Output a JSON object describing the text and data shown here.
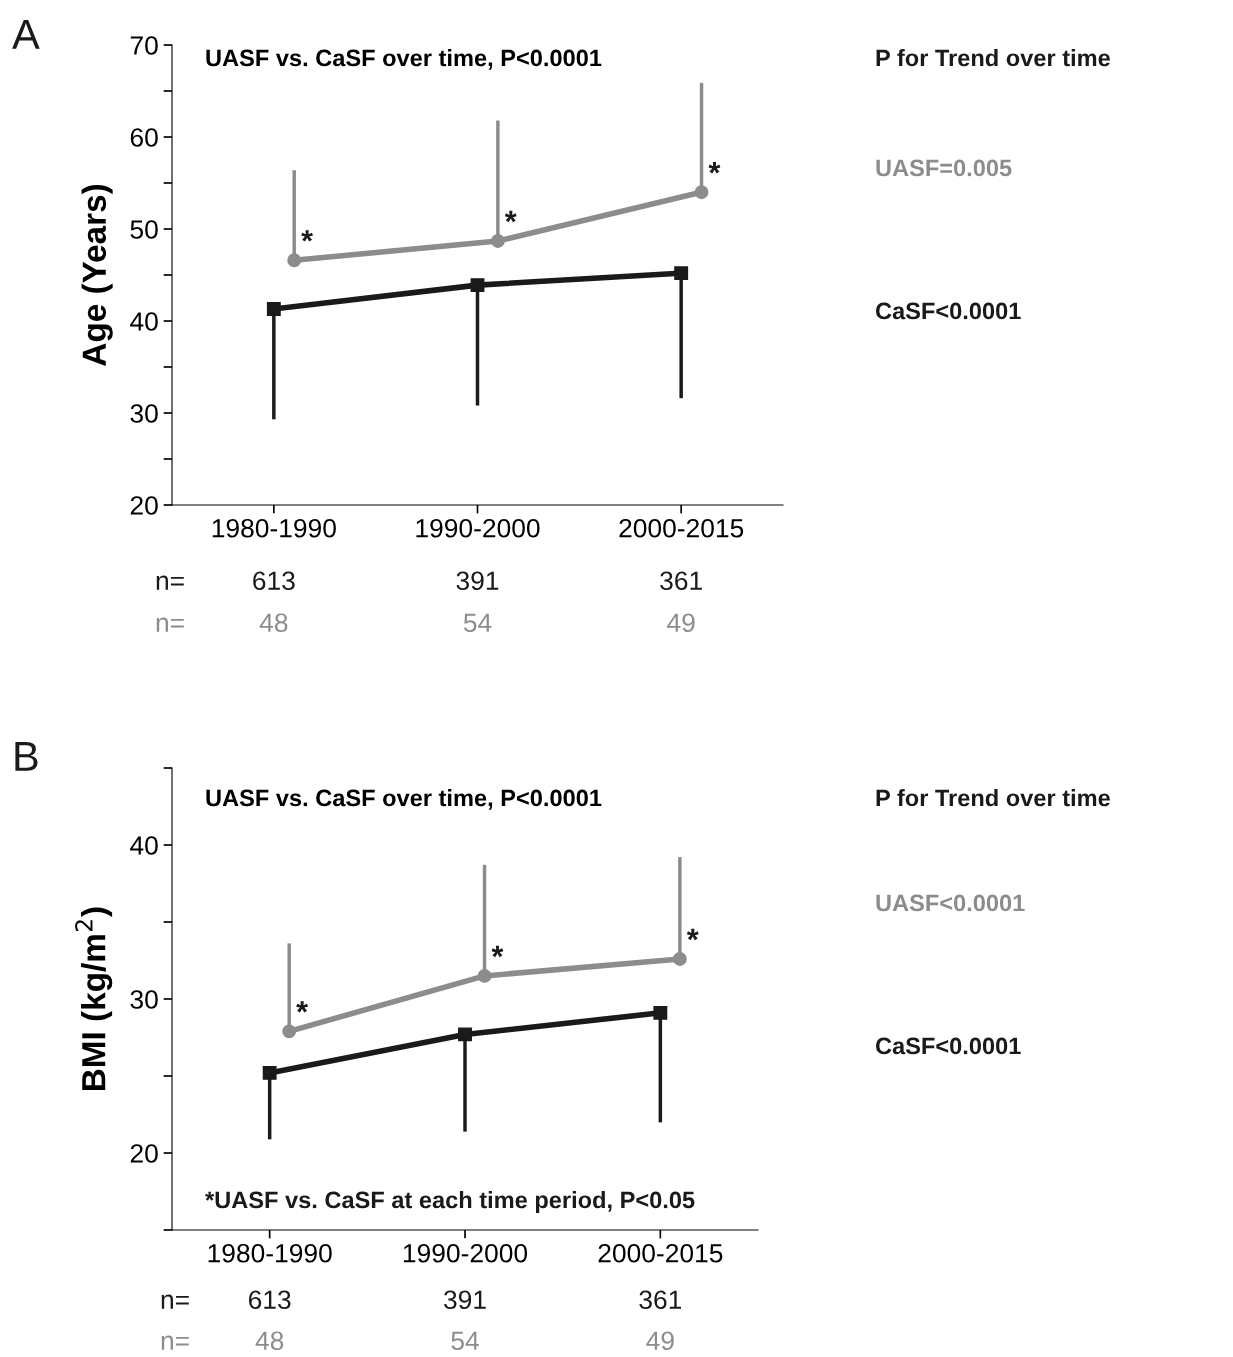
{
  "chart_data": [
    {
      "type": "line",
      "title": "UASF vs. CaSF over time, P<0.0001",
      "ylabel": "Age (Years)",
      "categories": [
        "1980-1990",
        "1990-2000",
        "2000-2015"
      ],
      "series": [
        {
          "color": "#8c8c8c",
          "values": [
            46.6,
            48.7,
            54.0
          ],
          "errors": [
            [
              46.6,
              56.2
            ],
            [
              48.7,
              61.6
            ],
            [
              54.0,
              65.7
            ]
          ],
          "marker": "circle"
        },
        {
          "color": "#1a1a1a",
          "values": [
            41.3,
            43.9,
            45.2
          ],
          "errors": [
            [
              29.5,
              41.3
            ],
            [
              31.0,
              43.9
            ],
            [
              31.8,
              45.2
            ]
          ],
          "marker": "square"
        }
      ],
      "ylim": [
        20,
        70
      ],
      "yticks": [
        20,
        {
          "value": 25,
          "label": null
        },
        30,
        {
          "value": 35,
          "label": null
        },
        40,
        {
          "value": 45,
          "label": null
        },
        50,
        {
          "value": 55,
          "label": null
        },
        60,
        {
          "value": 65,
          "label": null
        },
        70
      ],
      "grid": false,
      "legend": false,
      "line_style": "solid",
      "annotations": [
        "A",
        "P for Trend over time",
        "UASF=0.005",
        "CaSF<0.0001",
        "n=",
        "613",
        "391",
        "361",
        "n=",
        "48",
        "54",
        "49",
        "*",
        "*",
        "*"
      ]
    },
    {
      "type": "line",
      "title": "UASF vs. CaSF over time, P<0.0001",
      "ylabel": "BMI (kg/m$^{2}$)",
      "categories": [
        "1980-1990",
        "1990-2000",
        "2000-2015"
      ],
      "series": [
        {
          "color": "#8c8c8c",
          "values": [
            27.9,
            31.5,
            32.6
          ],
          "errors": [
            [
              27.9,
              33.5
            ],
            [
              31.5,
              38.6
            ],
            [
              32.6,
              39.1
            ]
          ],
          "marker": "circle"
        },
        {
          "color": "#1a1a1a",
          "values": [
            25.2,
            27.7,
            29.1
          ],
          "errors": [
            [
              21.0,
              25.2
            ],
            [
              21.5,
              27.7
            ],
            [
              22.1,
              29.1
            ]
          ],
          "marker": "square"
        }
      ],
      "ylim": [
        15,
        45
      ],
      "yticks": [
        {
          "value": 15,
          "label": null
        },
        20,
        {
          "value": 25,
          "label": null
        },
        30,
        {
          "value": 35,
          "label": null
        },
        40,
        {
          "value": 45,
          "label": null
        }
      ],
      "grid": false,
      "legend": false,
      "line_style": "solid",
      "annotations": [
        "B",
        "P for Trend over time",
        "UASF<0.0001",
        "CaSF<0.0001",
        "n=",
        "613",
        "391",
        "361",
        "n=",
        "48",
        "54",
        "49",
        "*",
        "*",
        "*",
        "*UASF vs. CaSF at each time period, P<0.05"
      ]
    }
  ]
}
